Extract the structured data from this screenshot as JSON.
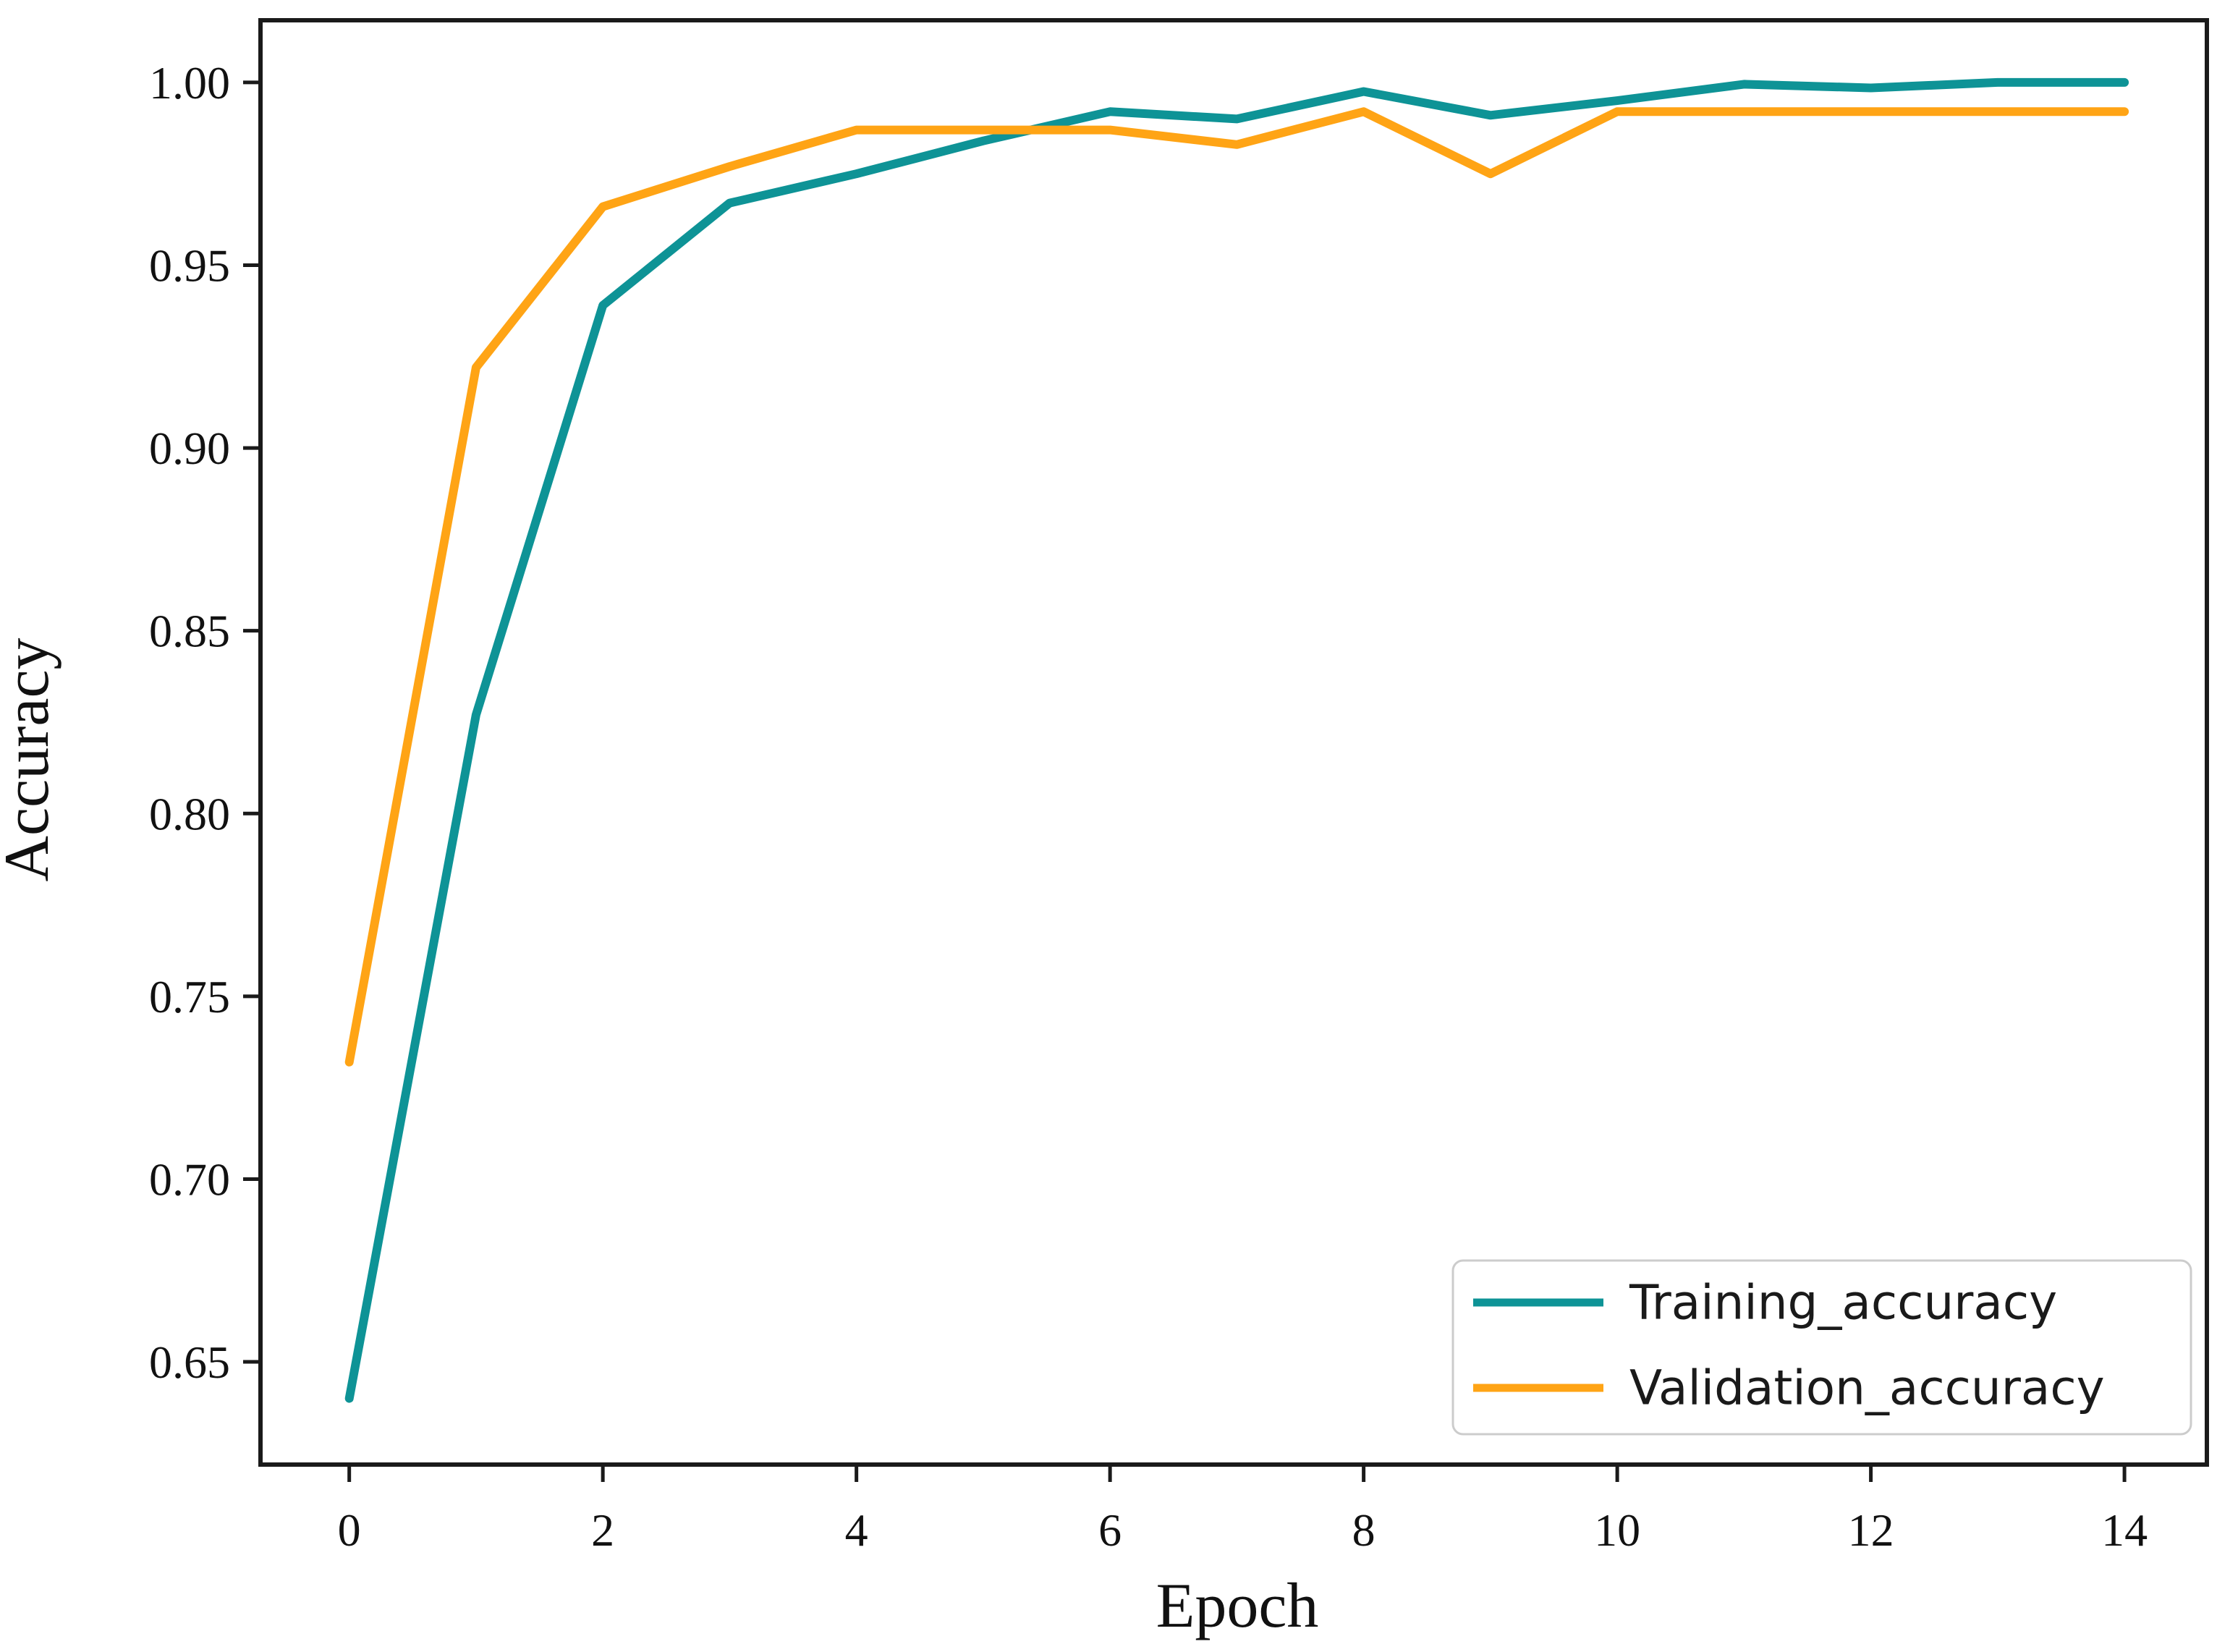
{
  "chart_data": {
    "type": "line",
    "title": "",
    "xlabel": "Epoch",
    "ylabel": "Accuracy",
    "x": [
      0,
      1,
      2,
      3,
      4,
      5,
      6,
      7,
      8,
      9,
      10,
      11,
      12,
      13,
      14
    ],
    "series": [
      {
        "name": "Training_accuracy",
        "color": "#0e9396",
        "values": [
          0.64,
          0.827,
          0.939,
          0.967,
          0.975,
          0.984,
          0.992,
          0.99,
          0.9975,
          0.991,
          0.995,
          0.9995,
          0.9985,
          1.0,
          1.0
        ]
      },
      {
        "name": "Validation_accuracy",
        "color": "#ffa415",
        "values": [
          0.732,
          0.922,
          0.966,
          0.977,
          0.987,
          0.987,
          0.987,
          0.983,
          0.992,
          0.975,
          0.992,
          0.992,
          0.992,
          0.992,
          0.992
        ]
      }
    ],
    "x_ticks": [
      0,
      2,
      4,
      6,
      8,
      10,
      12,
      14
    ],
    "y_ticks": [
      0.65,
      0.7,
      0.75,
      0.8,
      0.85,
      0.9,
      0.95,
      1.0
    ],
    "xlim": [
      -0.7,
      14.65
    ],
    "ylim": [
      0.6219,
      1.017
    ],
    "grid": false,
    "legend_position": "lower right",
    "colors": {
      "spine": "#1a1a1a",
      "tick_text": "#111111",
      "legend_border": "#cccccc",
      "background": "#ffffff"
    }
  }
}
